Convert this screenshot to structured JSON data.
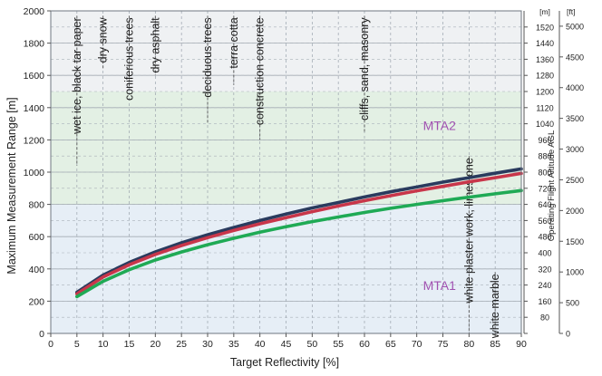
{
  "chart_data": {
    "type": "line",
    "xlabel": "Target Reflectivity [%]",
    "ylabel": "Maximum Measurement Range [m]",
    "xlim": [
      0,
      90
    ],
    "ylim": [
      0,
      2000
    ],
    "x_ticks": [
      0,
      5,
      10,
      15,
      20,
      25,
      30,
      35,
      40,
      45,
      50,
      55,
      60,
      65,
      70,
      75,
      80,
      85,
      90
    ],
    "y_ticks": [
      0,
      200,
      400,
      600,
      800,
      1000,
      1200,
      1400,
      1600,
      1800,
      2000
    ],
    "grid": true,
    "series": [
      {
        "color": "#2a3b5e",
        "points": [
          [
            5,
            255
          ],
          [
            10,
            362
          ],
          [
            15,
            440
          ],
          [
            20,
            505
          ],
          [
            25,
            562
          ],
          [
            30,
            612
          ],
          [
            35,
            657
          ],
          [
            40,
            700
          ],
          [
            45,
            740
          ],
          [
            50,
            778
          ],
          [
            55,
            812
          ],
          [
            60,
            846
          ],
          [
            65,
            878
          ],
          [
            70,
            908
          ],
          [
            75,
            938
          ],
          [
            80,
            966
          ],
          [
            85,
            993
          ],
          [
            90,
            1020
          ]
        ]
      },
      {
        "color": "#c8364a",
        "points": [
          [
            5,
            245
          ],
          [
            10,
            350
          ],
          [
            15,
            426
          ],
          [
            20,
            490
          ],
          [
            25,
            545
          ],
          [
            30,
            594
          ],
          [
            35,
            638
          ],
          [
            40,
            680
          ],
          [
            45,
            718
          ],
          [
            50,
            755
          ],
          [
            55,
            790
          ],
          [
            60,
            823
          ],
          [
            65,
            854
          ],
          [
            70,
            884
          ],
          [
            75,
            912
          ],
          [
            80,
            940
          ],
          [
            85,
            966
          ],
          [
            90,
            992
          ]
        ]
      },
      {
        "color": "#1faa55",
        "points": [
          [
            5,
            228
          ],
          [
            10,
            323
          ],
          [
            15,
            395
          ],
          [
            20,
            455
          ],
          [
            25,
            505
          ],
          [
            30,
            550
          ],
          [
            35,
            590
          ],
          [
            40,
            628
          ],
          [
            45,
            662
          ],
          [
            50,
            693
          ],
          [
            55,
            722
          ],
          [
            60,
            750
          ],
          [
            65,
            776
          ],
          [
            70,
            800
          ],
          [
            75,
            823
          ],
          [
            80,
            845
          ],
          [
            85,
            866
          ],
          [
            90,
            886
          ]
        ]
      }
    ],
    "bands": [
      {
        "label": "MTA1",
        "from": 0,
        "to": 800,
        "color": "#e6eef6",
        "label_color": "#a050b0"
      },
      {
        "label": "MTA2",
        "from": 800,
        "to": 1500,
        "color": "#e3f0e4",
        "label_color": "#a050b0"
      },
      {
        "label": "",
        "from": 1500,
        "to": 2000,
        "color": "#eff1f3"
      }
    ],
    "annotations": [
      {
        "text": "wet ice, black tar paper",
        "x": 5,
        "y_top": 1970,
        "y_bottom": 1040
      },
      {
        "text": "dry snow",
        "x": 10,
        "y_top": 1970,
        "y_bottom": 1640
      },
      {
        "text": "coniferious trees",
        "x": 15,
        "y_top": 1970,
        "y_bottom": 1520
      },
      {
        "text": "dry asphalt",
        "x": 20,
        "y_top": 1970,
        "y_bottom": 1600
      },
      {
        "text": "deciduous trees",
        "x": 30,
        "y_top": 1970,
        "y_bottom": 1300
      },
      {
        "text": "terra cotta",
        "x": 35,
        "y_top": 1970,
        "y_bottom": 1540
      },
      {
        "text": "construction concrete",
        "x": 40,
        "y_top": 1970,
        "y_bottom": 1200
      },
      {
        "text": "cliffs, sand, masonry",
        "x": 60,
        "y_top": 1970,
        "y_bottom": 1250
      },
      {
        "text": "white plaster work, limestone",
        "x": 80,
        "y_top": 1100,
        "y_bottom": 0
      },
      {
        "text": "white marble",
        "x": 85,
        "y_top": 380,
        "y_bottom": 0
      }
    ],
    "right_axis_m": {
      "label": "[m]",
      "ticks": [
        80,
        160,
        240,
        320,
        400,
        480,
        560,
        640,
        720,
        800,
        880,
        960,
        1040,
        1120,
        1200,
        1280,
        1360,
        1440,
        1520
      ]
    },
    "right_axis_ft": {
      "label": "[ft]",
      "title": "Operating Flight Altitude AGL",
      "ticks": [
        0,
        500,
        1000,
        1500,
        2000,
        2500,
        3000,
        3500,
        4000,
        4500,
        5000
      ]
    },
    "altitude_per_range": 0.8
  }
}
